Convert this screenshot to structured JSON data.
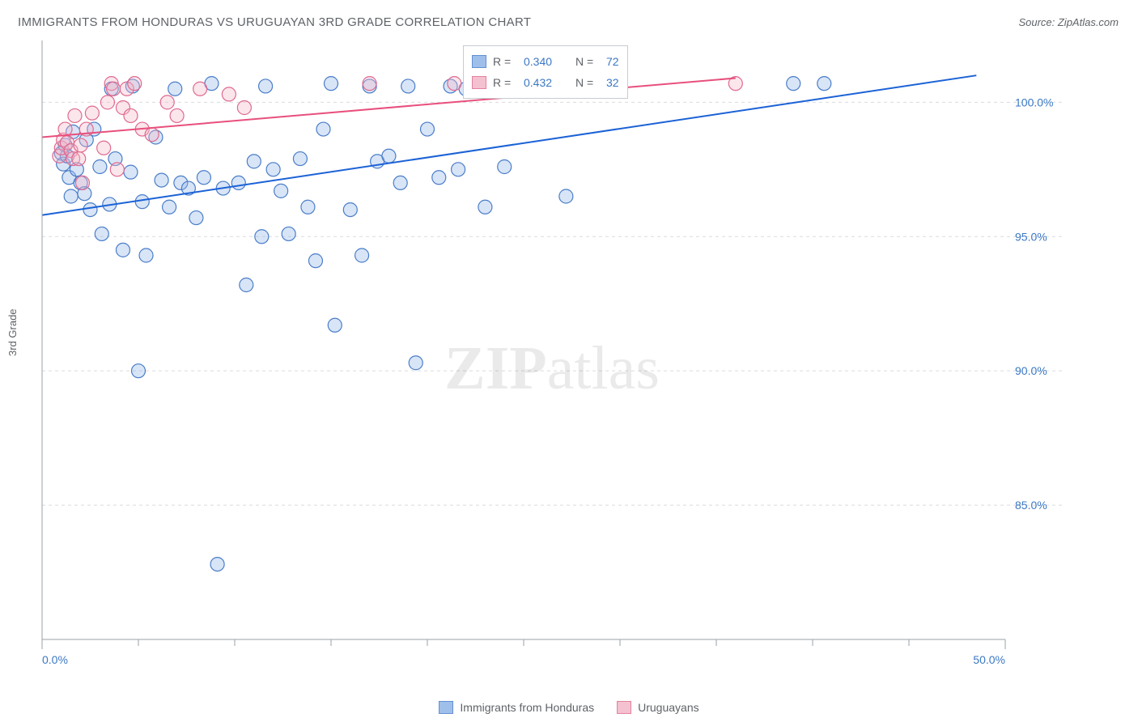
{
  "title": "IMMIGRANTS FROM HONDURAS VS URUGUAYAN 3RD GRADE CORRELATION CHART",
  "source_prefix": "Source: ",
  "source_name": "ZipAtlas.com",
  "ylabel": "3rd Grade",
  "watermark_a": "ZIP",
  "watermark_b": "atlas",
  "chart": {
    "type": "scatter",
    "xlim": [
      0,
      50
    ],
    "ylim": [
      80,
      102
    ],
    "xticks": [
      0,
      50
    ],
    "xtick_labels": [
      "0.0%",
      "50.0%"
    ],
    "yticks": [
      85,
      90,
      95,
      100
    ],
    "ytick_labels": [
      "85.0%",
      "90.0%",
      "95.0%",
      "100.0%"
    ],
    "x_minor_ticks": [
      5,
      10,
      15,
      20,
      25,
      30,
      35,
      40,
      45
    ],
    "grid_color": "#d9dbdd",
    "background": "#ffffff",
    "marker_radius": 8.5,
    "marker_stroke_width": 1.2,
    "marker_fill_opacity": 0.35,
    "line_width": 2,
    "series": [
      {
        "key": "honduras",
        "label": "Immigrants from Honduras",
        "color_fill": "#8fb4e8",
        "color_stroke": "#4a7dc9",
        "line_color": "#1b62d6",
        "R_label": "R =",
        "R": "0.340",
        "N_label": "N =",
        "N": "72",
        "trend": {
          "x1": 0,
          "y1": 95.8,
          "x2": 48.5,
          "y2": 101.0
        },
        "points": [
          [
            1.0,
            98.1
          ],
          [
            1.1,
            97.7
          ],
          [
            1.2,
            98.4
          ],
          [
            1.3,
            98.0
          ],
          [
            1.4,
            97.2
          ],
          [
            1.5,
            96.5
          ],
          [
            1.6,
            98.9
          ],
          [
            1.8,
            97.5
          ],
          [
            2.0,
            97.0
          ],
          [
            2.2,
            96.6
          ],
          [
            2.3,
            98.6
          ],
          [
            2.5,
            96.0
          ],
          [
            2.7,
            99.0
          ],
          [
            3.0,
            97.6
          ],
          [
            3.1,
            95.1
          ],
          [
            3.5,
            96.2
          ],
          [
            3.6,
            100.5
          ],
          [
            3.8,
            97.9
          ],
          [
            4.2,
            94.5
          ],
          [
            4.6,
            97.4
          ],
          [
            4.7,
            100.6
          ],
          [
            5.0,
            90.0
          ],
          [
            5.2,
            96.3
          ],
          [
            5.4,
            94.3
          ],
          [
            5.9,
            98.7
          ],
          [
            6.2,
            97.1
          ],
          [
            6.6,
            96.1
          ],
          [
            6.9,
            100.5
          ],
          [
            7.2,
            97.0
          ],
          [
            7.6,
            96.8
          ],
          [
            8.0,
            95.7
          ],
          [
            8.4,
            97.2
          ],
          [
            8.8,
            100.7
          ],
          [
            9.1,
            82.8
          ],
          [
            9.4,
            96.8
          ],
          [
            10.2,
            97.0
          ],
          [
            10.6,
            93.2
          ],
          [
            11.0,
            97.8
          ],
          [
            11.4,
            95.0
          ],
          [
            11.6,
            100.6
          ],
          [
            12.0,
            97.5
          ],
          [
            12.4,
            96.7
          ],
          [
            12.8,
            95.1
          ],
          [
            13.4,
            97.9
          ],
          [
            13.8,
            96.1
          ],
          [
            14.2,
            94.1
          ],
          [
            14.6,
            99.0
          ],
          [
            15.0,
            100.7
          ],
          [
            15.2,
            91.7
          ],
          [
            16.0,
            96.0
          ],
          [
            16.6,
            94.3
          ],
          [
            17.0,
            100.6
          ],
          [
            17.4,
            97.8
          ],
          [
            18.0,
            98.0
          ],
          [
            18.6,
            97.0
          ],
          [
            19.0,
            100.6
          ],
          [
            19.4,
            90.3
          ],
          [
            20.0,
            99.0
          ],
          [
            20.6,
            97.2
          ],
          [
            21.2,
            100.6
          ],
          [
            21.6,
            97.5
          ],
          [
            22.0,
            100.5
          ],
          [
            22.3,
            100.7
          ],
          [
            22.6,
            100.6
          ],
          [
            23.0,
            96.1
          ],
          [
            23.6,
            100.7
          ],
          [
            24.0,
            97.6
          ],
          [
            25.0,
            100.7
          ],
          [
            26.0,
            100.6
          ],
          [
            27.2,
            96.5
          ],
          [
            39.0,
            100.7
          ],
          [
            40.6,
            100.7
          ]
        ]
      },
      {
        "key": "uruguay",
        "label": "Uruguayans",
        "color_fill": "#f3b7c9",
        "color_stroke": "#e06a8f",
        "line_color": "#e84f7d",
        "R_label": "R =",
        "R": "0.432",
        "N_label": "N =",
        "N": "32",
        "trend": {
          "x1": 0,
          "y1": 98.7,
          "x2": 36,
          "y2": 100.9
        },
        "points": [
          [
            0.9,
            98.0
          ],
          [
            1.0,
            98.3
          ],
          [
            1.1,
            98.6
          ],
          [
            1.2,
            99.0
          ],
          [
            1.3,
            98.5
          ],
          [
            1.5,
            98.2
          ],
          [
            1.6,
            97.9
          ],
          [
            1.7,
            99.5
          ],
          [
            1.9,
            97.9
          ],
          [
            2.0,
            98.4
          ],
          [
            2.1,
            97.0
          ],
          [
            2.3,
            99.0
          ],
          [
            2.6,
            99.6
          ],
          [
            3.2,
            98.3
          ],
          [
            3.4,
            100.0
          ],
          [
            3.6,
            100.7
          ],
          [
            3.7,
            100.5
          ],
          [
            3.9,
            97.5
          ],
          [
            4.2,
            99.8
          ],
          [
            4.4,
            100.5
          ],
          [
            4.6,
            99.5
          ],
          [
            4.8,
            100.7
          ],
          [
            5.2,
            99.0
          ],
          [
            5.7,
            98.8
          ],
          [
            6.5,
            100.0
          ],
          [
            7.0,
            99.5
          ],
          [
            8.2,
            100.5
          ],
          [
            9.7,
            100.3
          ],
          [
            10.5,
            99.8
          ],
          [
            17.0,
            100.7
          ],
          [
            21.4,
            100.7
          ],
          [
            36.0,
            100.7
          ]
        ]
      }
    ]
  }
}
